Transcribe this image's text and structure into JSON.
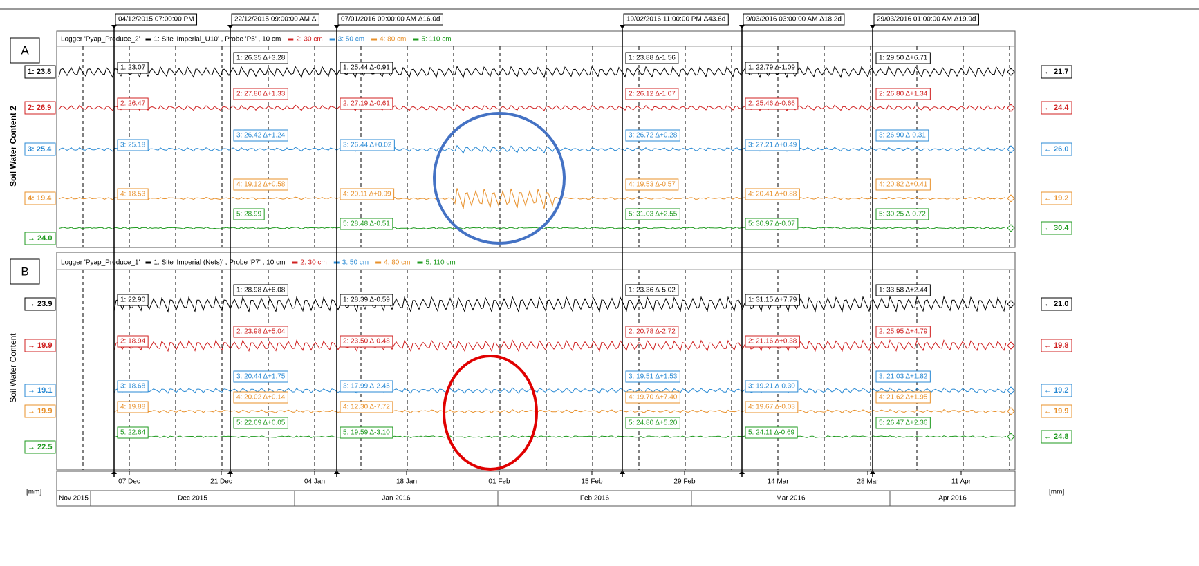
{
  "cursors": [
    "04/12/2015 07:00:00 PM",
    "22/12/2015 09:00:00 AM Δ",
    "07/01/2016 09:00:00 AM Δ16.0d",
    "19/02/2016 11:00:00 PM Δ43.6d",
    "9/03/2016 03:00:00 AM Δ18.2d",
    "29/03/2016 01:00:00 AM Δ19.9d"
  ],
  "panels": [
    {
      "letter": "A",
      "y_label": "Soil Water Content 2",
      "logger": "Logger 'Pyap_Produce_2'",
      "legend": [
        "1: Site 'Imperial_U10' , Probe 'P5' , 10 cm",
        "2: 30 cm",
        "3: 50 cm",
        "4: 80 cm",
        "5: 110 cm"
      ],
      "left": [
        "1: 23.8",
        "2: 26.9",
        "3: 25.4",
        "4: 19.4",
        "→ 24.0"
      ],
      "right": [
        "← 21.7",
        "← 24.4",
        "← 26.0",
        "← 19.2",
        "← 30.4"
      ],
      "readouts": [
        [
          "1: 23.07",
          "2: 26.47",
          "3: 25.18",
          "4: 18.53"
        ],
        [
          "1: 26.35 Δ+3.28",
          "2: 27.80 Δ+1.33",
          "3: 26.42 Δ+1.24",
          "4: 19.12 Δ+0.58",
          "5: 28.99"
        ],
        [
          "1: 25.44 Δ-0.91",
          "2: 27.19 Δ-0.61",
          "3: 26.44 Δ+0.02",
          "4: 20.11 Δ+0.99",
          "5: 28.48 Δ-0.51"
        ],
        [
          "1: 23.88 Δ-1.56",
          "2: 26.12 Δ-1.07",
          "3: 26.72 Δ+0.28",
          "4: 19.53 Δ-0.57",
          "5: 31.03 Δ+2.55"
        ],
        [
          "1: 22.79 Δ-1.09",
          "2: 25.46 Δ-0.66",
          "3: 27.21 Δ+0.49",
          "4: 20.41 Δ+0.88",
          "5: 30.97 Δ-0.07"
        ],
        [
          "1: 29.50 Δ+6.71",
          "2: 26.80 Δ+1.34",
          "3: 26.90 Δ-0.31",
          "4: 20.82 Δ+0.41",
          "5: 30.25 Δ-0.72"
        ]
      ]
    },
    {
      "letter": "B",
      "y_label": "Soil Water Content",
      "logger": "Logger 'Pyap_Produce_1'",
      "legend": [
        "1: Site 'Imperial (Nets)' , Probe 'P7' , 10 cm",
        "2: 30 cm",
        "3: 50 cm",
        "4: 80 cm",
        "5: 110 cm"
      ],
      "left": [
        "→ 23.9",
        "→ 19.9",
        "→ 19.1",
        "→ 19.9",
        "→ 22.5"
      ],
      "right": [
        "← 21.0",
        "← 19.8",
        "← 19.2",
        "← 19.9",
        "← 24.8"
      ],
      "readouts": [
        [
          "1: 22.90",
          "2: 18.94",
          "3: 18.68",
          "4: 19.88",
          "5: 22.64"
        ],
        [
          "1: 28.98 Δ+6.08",
          "2: 23.98 Δ+5.04",
          "3: 20.44 Δ+1.75",
          "4: 20.02 Δ+0.14",
          "5: 22.69 Δ+0.05"
        ],
        [
          "1: 28.39 Δ-0.59",
          "2: 23.50 Δ-0.48",
          "3: 17.99 Δ-2.45",
          "4: 12.30 Δ-7.72",
          "5: 19.59 Δ-3.10"
        ],
        [
          "1: 23.36 Δ-5.02",
          "2: 20.78 Δ-2.72",
          "3: 19.51 Δ+1.53",
          "4: 19.70 Δ+7.40",
          "5: 24.80 Δ+5.20"
        ],
        [
          "1: 31.15 Δ+7.79",
          "2: 21.16 Δ+0.38",
          "3: 19.21 Δ-0.30",
          "4: 19.67 Δ-0.03",
          "5: 24.11 Δ-0.69"
        ],
        [
          "1: 33.58 Δ+2.44",
          "2: 25.95 Δ+4.79",
          "3: 21.03 Δ+1.82",
          "4: 21.62 Δ+1.95",
          "5: 26.47 Δ+2.36"
        ]
      ]
    }
  ],
  "x_axis": {
    "unit": "[mm]",
    "days": [
      "07 Dec",
      "21 Dec",
      "04 Jan",
      "18 Jan",
      "01 Feb",
      "15 Feb",
      "29 Feb",
      "14 Mar",
      "28 Mar",
      "11 Apr"
    ],
    "months": [
      "Nov 2015",
      "Dec 2015",
      "Jan 2016",
      "Feb 2016",
      "Mar 2016",
      "Apr 2016"
    ]
  }
}
